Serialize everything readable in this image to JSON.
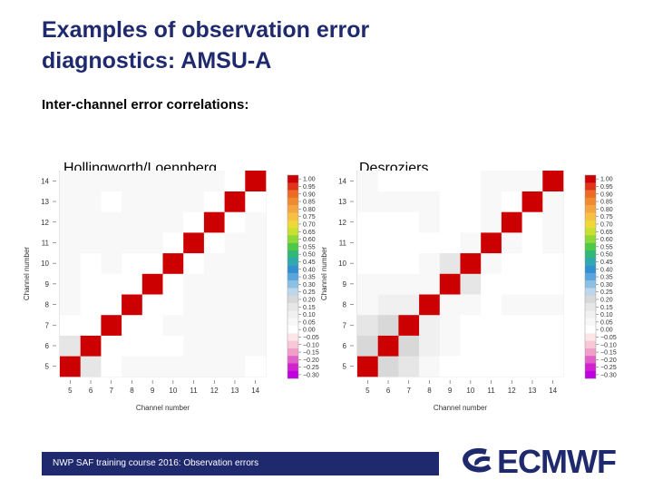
{
  "slide": {
    "title": "Examples of observation error\ndiagnostics: AMSU-A",
    "subtitle": "Inter-channel error correlations:",
    "footer": "NWP SAF training course 2016: Observation errors",
    "logo_text": "ECMWF"
  },
  "colors": {
    "title": "#1f2a6e",
    "footer_bg": "#1f2a6e",
    "scale": [
      "#cc0000",
      "#e0331a",
      "#ec6a24",
      "#f08a30",
      "#f4a640",
      "#f6c044",
      "#f0d838",
      "#c8e030",
      "#90d838",
      "#50c848",
      "#30b878",
      "#30a8b0",
      "#3090d0",
      "#5aa6dc",
      "#8ec0e4",
      "#bcd6ea",
      "#d8d8d8",
      "#e6e6e6",
      "#f0f0f0",
      "#f8f8f8",
      "#ffffff",
      "#fde6e6",
      "#f8c8d8",
      "#f0a0c8",
      "#e060c8",
      "#d020d0",
      "#c000e0"
    ]
  },
  "chart_data": [
    {
      "type": "heatmap",
      "title": "Hollingworth/Loennberg",
      "xlabel": "Channel number",
      "ylabel": "Channel number",
      "channels": [
        5,
        6,
        7,
        8,
        9,
        10,
        11,
        12,
        13,
        14
      ],
      "values": [
        [
          1.0,
          0.15,
          0.0,
          0.05,
          0.05,
          0.05,
          0.05,
          0.05,
          0.05,
          0.0
        ],
        [
          0.15,
          1.0,
          0.0,
          0.0,
          0.0,
          0.0,
          0.05,
          0.05,
          0.05,
          0.05
        ],
        [
          0.0,
          0.0,
          1.0,
          0.0,
          0.0,
          0.05,
          0.05,
          0.05,
          0.05,
          0.05
        ],
        [
          0.05,
          0.0,
          0.0,
          1.0,
          0.0,
          0.0,
          0.05,
          0.05,
          0.05,
          0.05
        ],
        [
          0.05,
          0.0,
          0.0,
          0.0,
          1.0,
          0.0,
          0.05,
          0.05,
          0.05,
          0.05
        ],
        [
          0.05,
          0.0,
          0.05,
          0.0,
          0.0,
          1.0,
          0.0,
          0.05,
          0.05,
          0.05
        ],
        [
          0.05,
          0.05,
          0.05,
          0.05,
          0.05,
          0.0,
          1.0,
          0.0,
          0.05,
          0.05
        ],
        [
          0.05,
          0.05,
          0.05,
          0.05,
          0.05,
          0.05,
          0.0,
          1.0,
          0.0,
          0.05
        ],
        [
          0.05,
          0.05,
          0.0,
          0.05,
          0.05,
          0.05,
          0.05,
          0.0,
          1.0,
          0.0
        ],
        [
          0.05,
          0.05,
          0.05,
          0.05,
          0.05,
          0.05,
          0.05,
          0.05,
          0.0,
          1.0
        ]
      ],
      "colorbar_ticks": [
        "1.00",
        "0.95",
        "0.90",
        "0.85",
        "0.80",
        "0.75",
        "0.70",
        "0.65",
        "0.60",
        "0.55",
        "0.50",
        "0.45",
        "0.40",
        "0.35",
        "0.30",
        "0.25",
        "0.20",
        "0.15",
        "0.10",
        "0.05",
        "0.00",
        "−0.05",
        "−0.10",
        "−0.15",
        "−0.20",
        "−0.25",
        "−0.30"
      ]
    },
    {
      "type": "heatmap",
      "title": "Desroziers",
      "xlabel": "Channel number",
      "ylabel": "Channel number",
      "channels": [
        5,
        6,
        7,
        8,
        9,
        10,
        11,
        12,
        13,
        14
      ],
      "values": [
        [
          1.0,
          0.2,
          0.15,
          0.05,
          0.0,
          0.0,
          0.0,
          0.0,
          0.0,
          0.0
        ],
        [
          0.2,
          1.0,
          0.2,
          0.1,
          0.05,
          0.0,
          0.0,
          0.0,
          0.0,
          0.0
        ],
        [
          0.15,
          0.2,
          1.0,
          0.1,
          0.05,
          0.0,
          0.0,
          0.0,
          0.0,
          0.0
        ],
        [
          0.05,
          0.1,
          0.1,
          1.0,
          0.05,
          0.05,
          0.0,
          0.05,
          0.05,
          0.05
        ],
        [
          0.05,
          0.05,
          0.05,
          0.05,
          1.0,
          0.15,
          0.0,
          0.0,
          0.0,
          0.0
        ],
        [
          0.0,
          0.0,
          0.0,
          0.05,
          0.15,
          1.0,
          0.05,
          0.0,
          0.0,
          0.0
        ],
        [
          0.0,
          0.0,
          0.0,
          0.0,
          0.0,
          0.05,
          1.0,
          0.05,
          0.0,
          0.05
        ],
        [
          0.0,
          0.0,
          0.0,
          0.05,
          0.0,
          0.0,
          0.05,
          1.0,
          0.0,
          0.05
        ],
        [
          0.05,
          0.05,
          0.05,
          0.05,
          0.0,
          0.0,
          0.05,
          0.0,
          1.0,
          0.05
        ],
        [
          0.05,
          0.0,
          0.0,
          0.0,
          0.0,
          0.0,
          0.05,
          0.05,
          0.05,
          1.0
        ]
      ],
      "colorbar_ticks": [
        "1.00",
        "0.95",
        "0.90",
        "0.85",
        "0.80",
        "0.75",
        "0.70",
        "0.65",
        "0.60",
        "0.55",
        "0.50",
        "0.45",
        "0.40",
        "0.35",
        "0.30",
        "0.25",
        "0.20",
        "0.15",
        "0.10",
        "0.05",
        "0.00",
        "−0.05",
        "−0.10",
        "−0.15",
        "−0.20",
        "−0.25",
        "−0.30"
      ]
    }
  ]
}
